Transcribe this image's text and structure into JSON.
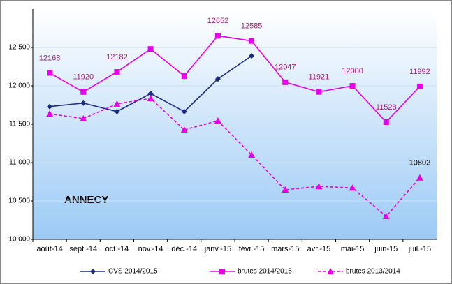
{
  "chart_data": {
    "type": "line",
    "annotation": "ANNECY",
    "categories": [
      "août-14",
      "sept.-14",
      "oct.-14",
      "nov.-14",
      "déc.-14",
      "janv.-15",
      "févr.-15",
      "mars-15",
      "avr.-15",
      "mai-15",
      "juin-15",
      "juil.-15"
    ],
    "series": [
      {
        "name": "CVS 2014/2015",
        "color": "#1c2a80",
        "marker": "diamond",
        "dashed": false,
        "values": [
          11730,
          11775,
          11665,
          11900,
          11665,
          12090,
          12390,
          null,
          null,
          null,
          null,
          null
        ]
      },
      {
        "name": "brutes 2014/2015",
        "color": "#e600e6",
        "marker": "square",
        "dashed": false,
        "values": [
          12168,
          11920,
          12182,
          12480,
          12128,
          12652,
          12585,
          12047,
          11921,
          12000,
          11528,
          11992
        ],
        "value_labels": [
          "12168",
          "11920",
          "12182",
          null,
          null,
          "12652",
          "12585",
          "12047",
          "11921",
          "12000",
          "11528",
          "11992"
        ],
        "label_color": "#a0207a"
      },
      {
        "name": "brutes 2013/2014",
        "color": "#e600e6",
        "marker": "triangle",
        "dashed": true,
        "values": [
          11636,
          11573,
          11765,
          11836,
          11427,
          11545,
          11100,
          10645,
          10690,
          10670,
          10300,
          10802
        ],
        "value_labels": [
          null,
          null,
          null,
          null,
          null,
          null,
          null,
          null,
          null,
          null,
          null,
          "10802"
        ],
        "label_color": "#000000"
      }
    ],
    "ylim": [
      10000,
      13000
    ],
    "yticks": [
      {
        "value": 10000,
        "label": "10 000"
      },
      {
        "value": 10500,
        "label": "10 500"
      },
      {
        "value": 11000,
        "label": "11 000"
      },
      {
        "value": 11500,
        "label": "11 500"
      },
      {
        "value": 12000,
        "label": "12 000"
      },
      {
        "value": 12500,
        "label": "12 500"
      }
    ],
    "grid": true,
    "legend": "bottom"
  }
}
